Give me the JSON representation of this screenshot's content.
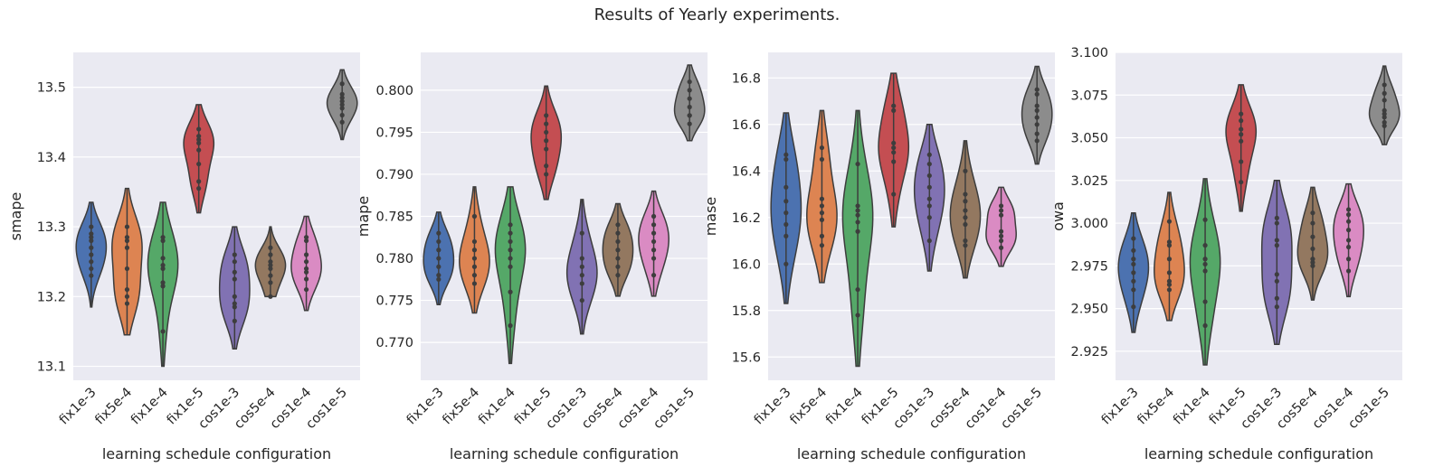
{
  "figure": {
    "title": "Results of Yearly experiments."
  },
  "colors": [
    "#4c72b0",
    "#dd8452",
    "#55a868",
    "#c44e52",
    "#8172b3",
    "#937860",
    "#da8bc3",
    "#8c8c8c"
  ],
  "chart_data": [
    {
      "type": "violin",
      "xlabel": "learning schedule configuration",
      "ylabel": "smape",
      "categories": [
        "fix1e-3",
        "fix5e-4",
        "fix1e-4",
        "fix1e-5",
        "cos1e-3",
        "cos5e-4",
        "cos1e-4",
        "cos1e-5"
      ],
      "ylim": [
        13.08,
        13.55
      ],
      "yticks": [
        13.1,
        13.2,
        13.3,
        13.4,
        13.5
      ],
      "ytick_labels": [
        "13.1",
        "13.2",
        "13.3",
        "13.4",
        "13.5"
      ],
      "series": [
        {
          "name": "fix1e-3",
          "extent": [
            13.185,
            13.335
          ],
          "points": [
            13.23,
            13.24,
            13.25,
            13.26,
            13.27,
            13.28,
            13.285,
            13.29,
            13.3
          ]
        },
        {
          "name": "fix5e-4",
          "extent": [
            13.145,
            13.355
          ],
          "points": [
            13.19,
            13.2,
            13.21,
            13.24,
            13.27,
            13.28,
            13.285,
            13.3
          ]
        },
        {
          "name": "fix1e-4",
          "extent": [
            13.1,
            13.335
          ],
          "points": [
            13.15,
            13.215,
            13.22,
            13.24,
            13.245,
            13.255,
            13.28,
            13.285
          ]
        },
        {
          "name": "fix1e-5",
          "extent": [
            13.32,
            13.475
          ],
          "points": [
            13.355,
            13.365,
            13.39,
            13.41,
            13.42,
            13.425,
            13.43,
            13.44
          ]
        },
        {
          "name": "cos1e-3",
          "extent": [
            13.125,
            13.3
          ],
          "points": [
            13.165,
            13.185,
            13.19,
            13.2,
            13.225,
            13.235,
            13.25,
            13.26
          ]
        },
        {
          "name": "cos5e-4",
          "extent": [
            13.2,
            13.3
          ],
          "points": [
            13.2,
            13.22,
            13.23,
            13.24,
            13.245,
            13.25,
            13.26,
            13.27
          ]
        },
        {
          "name": "cos1e-4",
          "extent": [
            13.18,
            13.315
          ],
          "points": [
            13.21,
            13.225,
            13.235,
            13.24,
            13.25,
            13.26,
            13.28,
            13.285
          ]
        },
        {
          "name": "cos1e-5",
          "extent": [
            13.425,
            13.525
          ],
          "points": [
            13.45,
            13.46,
            13.47,
            13.475,
            13.48,
            13.485,
            13.49,
            13.505
          ]
        }
      ]
    },
    {
      "type": "violin",
      "xlabel": "learning schedule configuration",
      "ylabel": "mape",
      "categories": [
        "fix1e-3",
        "fix5e-4",
        "fix1e-4",
        "fix1e-5",
        "cos1e-3",
        "cos5e-4",
        "cos1e-4",
        "cos1e-5"
      ],
      "ylim": [
        0.7655,
        0.8045
      ],
      "yticks": [
        0.77,
        0.775,
        0.78,
        0.785,
        0.79,
        0.795,
        0.8
      ],
      "ytick_labels": [
        "0.770",
        "0.775",
        "0.780",
        "0.785",
        "0.790",
        "0.795",
        "0.800"
      ],
      "series": [
        {
          "name": "fix1e-3",
          "extent": [
            0.7745,
            0.7855
          ],
          "points": [
            0.7775,
            0.778,
            0.779,
            0.78,
            0.781,
            0.782,
            0.783
          ]
        },
        {
          "name": "fix5e-4",
          "extent": [
            0.7735,
            0.7885
          ],
          "points": [
            0.777,
            0.778,
            0.779,
            0.78,
            0.781,
            0.782,
            0.785
          ]
        },
        {
          "name": "fix1e-4",
          "extent": [
            0.7675,
            0.7885
          ],
          "points": [
            0.772,
            0.776,
            0.779,
            0.78,
            0.781,
            0.782,
            0.783,
            0.784
          ]
        },
        {
          "name": "fix1e-5",
          "extent": [
            0.787,
            0.8005
          ],
          "points": [
            0.79,
            0.791,
            0.793,
            0.794,
            0.795,
            0.796,
            0.797
          ]
        },
        {
          "name": "cos1e-3",
          "extent": [
            0.771,
            0.787
          ],
          "points": [
            0.775,
            0.777,
            0.778,
            0.779,
            0.78,
            0.783
          ]
        },
        {
          "name": "cos5e-4",
          "extent": [
            0.7755,
            0.7865
          ],
          "points": [
            0.778,
            0.779,
            0.78,
            0.781,
            0.782,
            0.783,
            0.784
          ]
        },
        {
          "name": "cos1e-4",
          "extent": [
            0.7755,
            0.788
          ],
          "points": [
            0.778,
            0.78,
            0.781,
            0.782,
            0.783,
            0.784,
            0.785
          ]
        },
        {
          "name": "cos1e-5",
          "extent": [
            0.794,
            0.803
          ],
          "points": [
            0.796,
            0.797,
            0.797,
            0.798,
            0.799,
            0.8,
            0.801
          ]
        }
      ]
    },
    {
      "type": "violin",
      "xlabel": "learning schedule configuration",
      "ylabel": "mase",
      "categories": [
        "fix1e-3",
        "fix5e-4",
        "fix1e-4",
        "fix1e-5",
        "cos1e-3",
        "cos5e-4",
        "cos1e-4",
        "cos1e-5"
      ],
      "ylim": [
        15.5,
        16.91
      ],
      "yticks": [
        15.6,
        15.8,
        16.0,
        16.2,
        16.4,
        16.6,
        16.8
      ],
      "ytick_labels": [
        "15.6",
        "15.8",
        "16.0",
        "16.2",
        "16.4",
        "16.6",
        "16.8"
      ],
      "series": [
        {
          "name": "fix1e-3",
          "extent": [
            15.83,
            16.65
          ],
          "points": [
            16.0,
            16.12,
            16.17,
            16.22,
            16.27,
            16.33,
            16.45,
            16.47
          ]
        },
        {
          "name": "fix5e-4",
          "extent": [
            15.92,
            16.66
          ],
          "points": [
            16.08,
            16.12,
            16.19,
            16.22,
            16.25,
            16.28,
            16.45,
            16.5
          ]
        },
        {
          "name": "fix1e-4",
          "extent": [
            15.56,
            16.66
          ],
          "points": [
            15.78,
            15.89,
            16.14,
            16.18,
            16.21,
            16.23,
            16.25,
            16.43
          ]
        },
        {
          "name": "fix1e-5",
          "extent": [
            16.16,
            16.82
          ],
          "points": [
            16.3,
            16.44,
            16.48,
            16.5,
            16.52,
            16.66,
            16.68
          ]
        },
        {
          "name": "cos1e-3",
          "extent": [
            15.97,
            16.6
          ],
          "points": [
            16.1,
            16.2,
            16.25,
            16.28,
            16.33,
            16.38,
            16.43,
            16.47
          ]
        },
        {
          "name": "cos5e-4",
          "extent": [
            15.94,
            16.53
          ],
          "points": [
            16.08,
            16.1,
            16.17,
            16.2,
            16.23,
            16.27,
            16.3,
            16.4
          ]
        },
        {
          "name": "cos1e-4",
          "extent": [
            15.99,
            16.33
          ],
          "points": [
            16.07,
            16.1,
            16.12,
            16.14,
            16.21,
            16.23,
            16.25
          ]
        },
        {
          "name": "cos1e-5",
          "extent": [
            16.43,
            16.85
          ],
          "points": [
            16.53,
            16.56,
            16.6,
            16.63,
            16.66,
            16.68,
            16.73,
            16.75
          ]
        }
      ]
    },
    {
      "type": "violin",
      "xlabel": "learning schedule configuration",
      "ylabel": "owa",
      "categories": [
        "fix1e-3",
        "fix5e-4",
        "fix1e-4",
        "fix1e-5",
        "cos1e-3",
        "cos5e-4",
        "cos1e-4",
        "cos1e-5"
      ],
      "ylim": [
        2.908,
        3.1
      ],
      "yticks": [
        2.925,
        2.95,
        2.975,
        3.0,
        3.025,
        3.05,
        3.075,
        3.1
      ],
      "ytick_labels": [
        "2.925",
        "2.950",
        "2.975",
        "3.000",
        "3.025",
        "3.050",
        "3.075",
        "3.100"
      ],
      "series": [
        {
          "name": "fix1e-3",
          "extent": [
            2.936,
            3.006
          ],
          "points": [
            2.951,
            2.961,
            2.966,
            2.971,
            2.976,
            2.979,
            2.984,
            2.991
          ]
        },
        {
          "name": "fix5e-4",
          "extent": [
            2.943,
            3.018
          ],
          "points": [
            2.961,
            2.964,
            2.966,
            2.971,
            2.979,
            2.987,
            2.989,
            3.001
          ]
        },
        {
          "name": "fix1e-4",
          "extent": [
            2.917,
            3.026
          ],
          "points": [
            2.94,
            2.954,
            2.972,
            2.976,
            2.979,
            2.987,
            3.002
          ]
        },
        {
          "name": "fix1e-5",
          "extent": [
            3.007,
            3.081
          ],
          "points": [
            3.024,
            3.036,
            3.048,
            3.052,
            3.055,
            3.06,
            3.064
          ]
        },
        {
          "name": "cos1e-3",
          "extent": [
            2.929,
            3.025
          ],
          "points": [
            2.951,
            2.956,
            2.966,
            2.97,
            2.987,
            2.99,
            3.0,
            3.003
          ]
        },
        {
          "name": "cos5e-4",
          "extent": [
            2.955,
            3.021
          ],
          "points": [
            2.975,
            2.977,
            2.979,
            2.985,
            2.992,
            3.0,
            3.006
          ]
        },
        {
          "name": "cos1e-4",
          "extent": [
            2.957,
            3.023
          ],
          "points": [
            2.972,
            2.979,
            2.986,
            2.99,
            2.996,
            3.001,
            3.005,
            3.008
          ]
        },
        {
          "name": "cos1e-5",
          "extent": [
            3.046,
            3.092
          ],
          "points": [
            3.057,
            3.059,
            3.062,
            3.064,
            3.066,
            3.072,
            3.076,
            3.081
          ]
        }
      ]
    }
  ]
}
